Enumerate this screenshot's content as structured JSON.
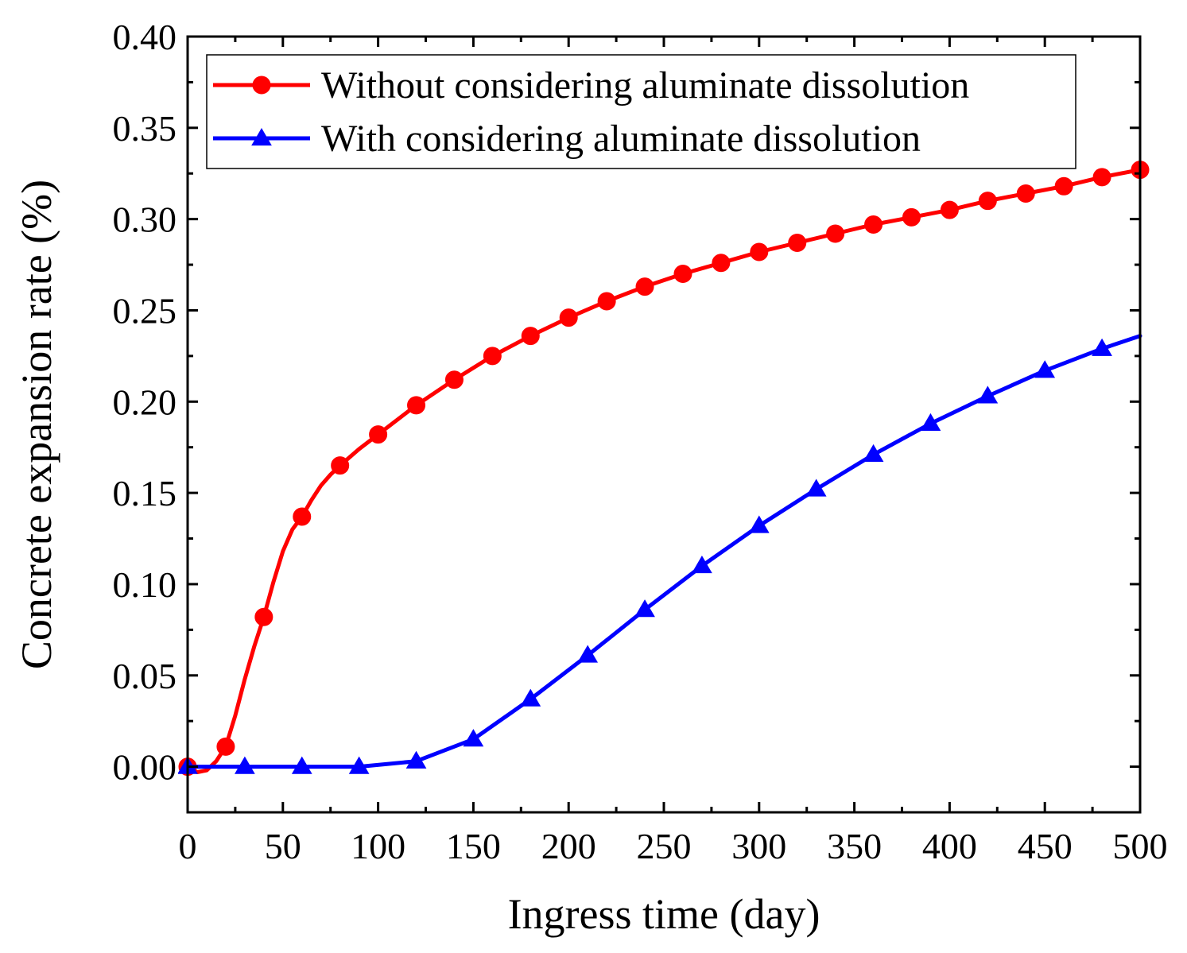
{
  "chart_data": {
    "type": "line",
    "title": "",
    "xlabel": "Ingress time (day)",
    "ylabel": "Concrete expansion rate (%)",
    "xlim": [
      0,
      500
    ],
    "ylim": [
      -0.025,
      0.4
    ],
    "xticks": [
      0,
      50,
      100,
      150,
      200,
      250,
      300,
      350,
      400,
      450,
      500
    ],
    "xtick_labels": [
      "0",
      "50",
      "100",
      "150",
      "200",
      "250",
      "300",
      "350",
      "400",
      "450",
      "500"
    ],
    "yticks": [
      0.0,
      0.05,
      0.1,
      0.15,
      0.2,
      0.25,
      0.3,
      0.35,
      0.4
    ],
    "ytick_labels": [
      "0.00",
      "0.05",
      "0.10",
      "0.15",
      "0.20",
      "0.25",
      "0.30",
      "0.35",
      "0.40"
    ],
    "grid": false,
    "legend_position": "top-left",
    "series": [
      {
        "name": "Without considering aluminate dissolution",
        "color": "#ff0000",
        "marker": "circle",
        "line_x": [
          0,
          5,
          10,
          15,
          20,
          25,
          30,
          35,
          40,
          45,
          50,
          55,
          60,
          65,
          70,
          75,
          80,
          90,
          100,
          120,
          140,
          160,
          180,
          200,
          220,
          240,
          260,
          280,
          300,
          320,
          340,
          360,
          380,
          400,
          420,
          440,
          460,
          480,
          500
        ],
        "line_y": [
          0.0,
          -0.003,
          -0.002,
          0.003,
          0.011,
          0.028,
          0.048,
          0.066,
          0.082,
          0.101,
          0.118,
          0.13,
          0.137,
          0.146,
          0.154,
          0.16,
          0.165,
          0.174,
          0.182,
          0.198,
          0.212,
          0.225,
          0.236,
          0.246,
          0.255,
          0.263,
          0.27,
          0.276,
          0.282,
          0.287,
          0.292,
          0.297,
          0.301,
          0.305,
          0.31,
          0.314,
          0.318,
          0.323,
          0.327
        ],
        "marker_x": [
          0,
          20,
          40,
          60,
          80,
          100,
          120,
          140,
          160,
          180,
          200,
          220,
          240,
          260,
          280,
          300,
          320,
          340,
          360,
          380,
          400,
          420,
          440,
          460,
          480,
          500
        ],
        "marker_y": [
          0.0,
          0.011,
          0.082,
          0.137,
          0.165,
          0.182,
          0.198,
          0.212,
          0.225,
          0.236,
          0.246,
          0.255,
          0.263,
          0.27,
          0.276,
          0.282,
          0.287,
          0.292,
          0.297,
          0.301,
          0.305,
          0.31,
          0.314,
          0.318,
          0.323,
          0.327
        ]
      },
      {
        "name": "With considering aluminate dissolution",
        "color": "#0000ff",
        "marker": "triangle",
        "line_x": [
          0,
          30,
          60,
          90,
          120,
          150,
          180,
          210,
          240,
          270,
          300,
          330,
          360,
          390,
          420,
          450,
          480,
          500
        ],
        "line_y": [
          0.0,
          0.0,
          0.0,
          0.0,
          0.003,
          0.015,
          0.037,
          0.061,
          0.086,
          0.11,
          0.132,
          0.152,
          0.171,
          0.188,
          0.203,
          0.217,
          0.229,
          0.236
        ],
        "marker_x": [
          0,
          30,
          60,
          90,
          120,
          150,
          180,
          210,
          240,
          270,
          300,
          330,
          360,
          390,
          420,
          450,
          480
        ],
        "marker_y": [
          0.0,
          0.0,
          0.0,
          0.0,
          0.003,
          0.015,
          0.037,
          0.061,
          0.086,
          0.11,
          0.132,
          0.152,
          0.171,
          0.188,
          0.203,
          0.217,
          0.229
        ]
      }
    ]
  }
}
